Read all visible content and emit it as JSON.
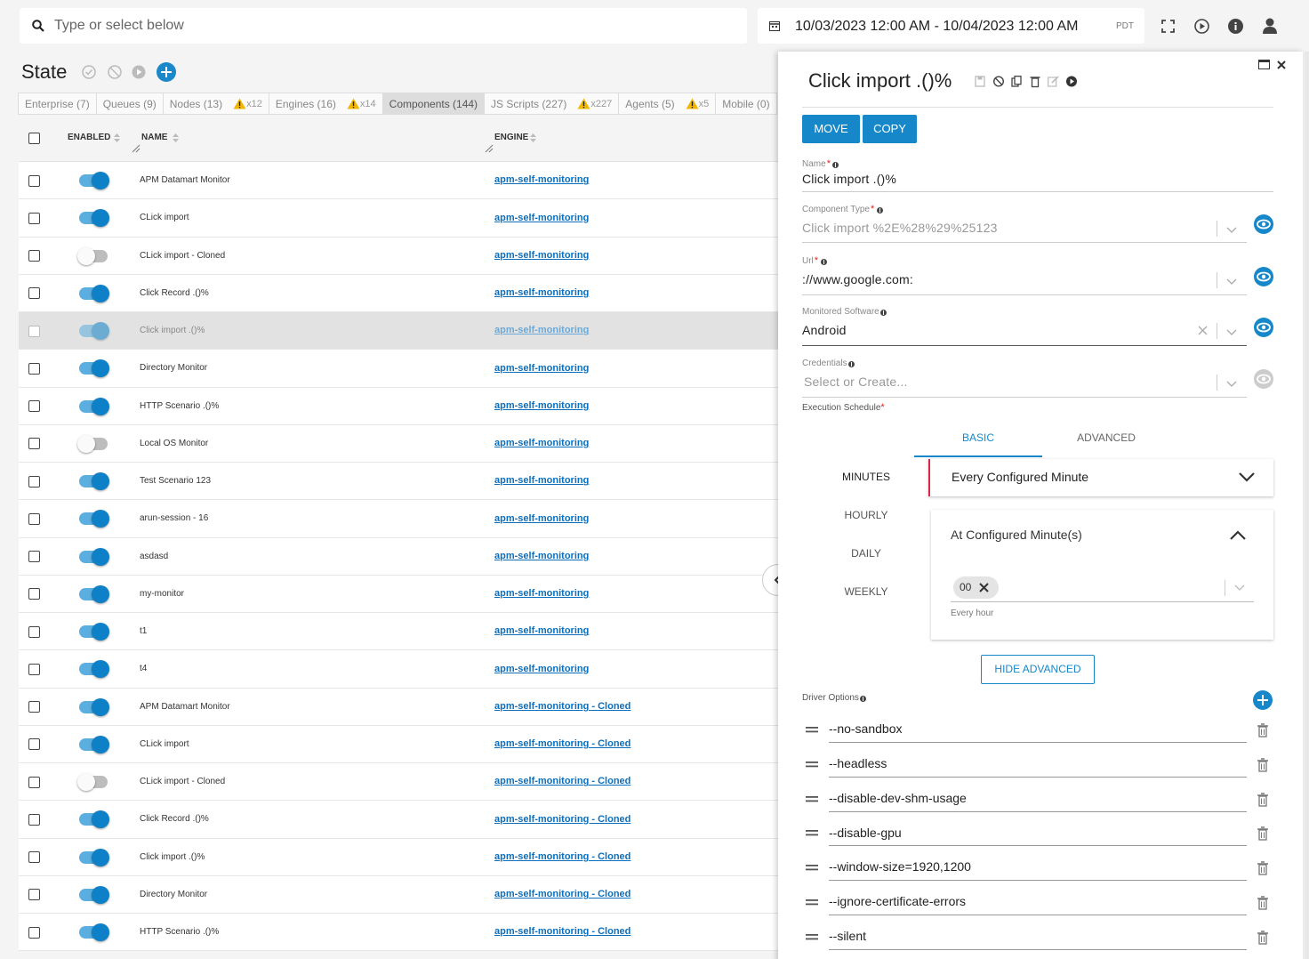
{
  "search": {
    "placeholder": "Type or select below"
  },
  "date_range": {
    "text": "10/03/2023 12:00 AM - 10/04/2023 12:00 AM",
    "timezone": "PDT"
  },
  "title": "State",
  "tabs": [
    {
      "label": "Enterprise (7)"
    },
    {
      "label": "Queues (9)"
    },
    {
      "label": "Nodes (13)",
      "warning": "x12"
    },
    {
      "label": "Engines (16)",
      "warning": "x14"
    },
    {
      "label": "Components (144)",
      "active": true
    },
    {
      "label": "JS Scripts (227)",
      "warning": "x227"
    },
    {
      "label": "Agents (5)",
      "warning": "x5"
    },
    {
      "label": "Mobile (0)"
    }
  ],
  "table": {
    "headers": [
      "ENABLED",
      "NAME",
      "ENGINE"
    ],
    "rows": [
      {
        "enabled": true,
        "name": "APM Datamart Monitor",
        "engine": "apm-self-monitoring"
      },
      {
        "enabled": true,
        "name": "CLick import",
        "engine": "apm-self-monitoring"
      },
      {
        "enabled": false,
        "name": "CLick import - Cloned",
        "engine": "apm-self-monitoring"
      },
      {
        "enabled": true,
        "name": "Click Record .()%",
        "engine": "apm-self-monitoring"
      },
      {
        "enabled": true,
        "name": "Click import .()%",
        "engine": "apm-self-monitoring",
        "selected": true
      },
      {
        "enabled": true,
        "name": "Directory Monitor",
        "engine": "apm-self-monitoring"
      },
      {
        "enabled": true,
        "name": "HTTP Scenario .()%",
        "engine": "apm-self-monitoring"
      },
      {
        "enabled": false,
        "name": "Local OS Monitor",
        "engine": "apm-self-monitoring"
      },
      {
        "enabled": true,
        "name": "Test Scenario 123",
        "engine": "apm-self-monitoring"
      },
      {
        "enabled": true,
        "name": "arun-session - 16",
        "engine": "apm-self-monitoring"
      },
      {
        "enabled": true,
        "name": "asdasd",
        "engine": "apm-self-monitoring"
      },
      {
        "enabled": true,
        "name": "my-monitor",
        "engine": "apm-self-monitoring"
      },
      {
        "enabled": true,
        "name": "t1",
        "engine": "apm-self-monitoring"
      },
      {
        "enabled": true,
        "name": "t4",
        "engine": "apm-self-monitoring"
      },
      {
        "enabled": true,
        "name": "APM Datamart Monitor",
        "engine": "apm-self-monitoring - Cloned"
      },
      {
        "enabled": true,
        "name": "CLick import",
        "engine": "apm-self-monitoring - Cloned"
      },
      {
        "enabled": false,
        "name": "CLick import - Cloned",
        "engine": "apm-self-monitoring - Cloned"
      },
      {
        "enabled": true,
        "name": "Click Record .()%",
        "engine": "apm-self-monitoring - Cloned"
      },
      {
        "enabled": true,
        "name": "Click import .()%",
        "engine": "apm-self-monitoring - Cloned"
      },
      {
        "enabled": true,
        "name": "Directory Monitor",
        "engine": "apm-self-monitoring - Cloned"
      },
      {
        "enabled": true,
        "name": "HTTP Scenario .()%",
        "engine": "apm-self-monitoring - Cloned"
      }
    ]
  },
  "panel": {
    "title": "Click import .()%",
    "actions": [
      "MOVE",
      "COPY"
    ],
    "fields": [
      {
        "label": "Name",
        "required": "*",
        "value": "Click import .()%"
      },
      {
        "label": "Component Type",
        "required": "*",
        "value": "Click import %2E%28%29%25123",
        "disabled": true
      },
      {
        "label": "Url",
        "required": "*",
        "value": "://www.google.com:"
      },
      {
        "label": "Monitored Software",
        "value": "Android",
        "clearable": true
      },
      {
        "label": "Credentials",
        "placeholder": "Select or Create..."
      }
    ],
    "schedule": {
      "label": "Execution Schedule",
      "required": "*",
      "tabs": [
        "BASIC",
        "ADVANCED"
      ],
      "periods": [
        "MINUTES",
        "HOURLY",
        "DAILY",
        "WEEKLY"
      ],
      "mode": "Every Configured Minute",
      "section": "At Configured Minute(s)",
      "chips": [
        "00"
      ],
      "hint": "Every hour",
      "toggle_button": "HIDE ADVANCED"
    },
    "driver_options": {
      "label": "Driver Options",
      "items": [
        "--no-sandbox",
        "--headless",
        "--disable-dev-shm-usage",
        "--disable-gpu",
        "--window-size=1920,1200",
        "--ignore-certificate-errors",
        "--silent"
      ]
    }
  }
}
